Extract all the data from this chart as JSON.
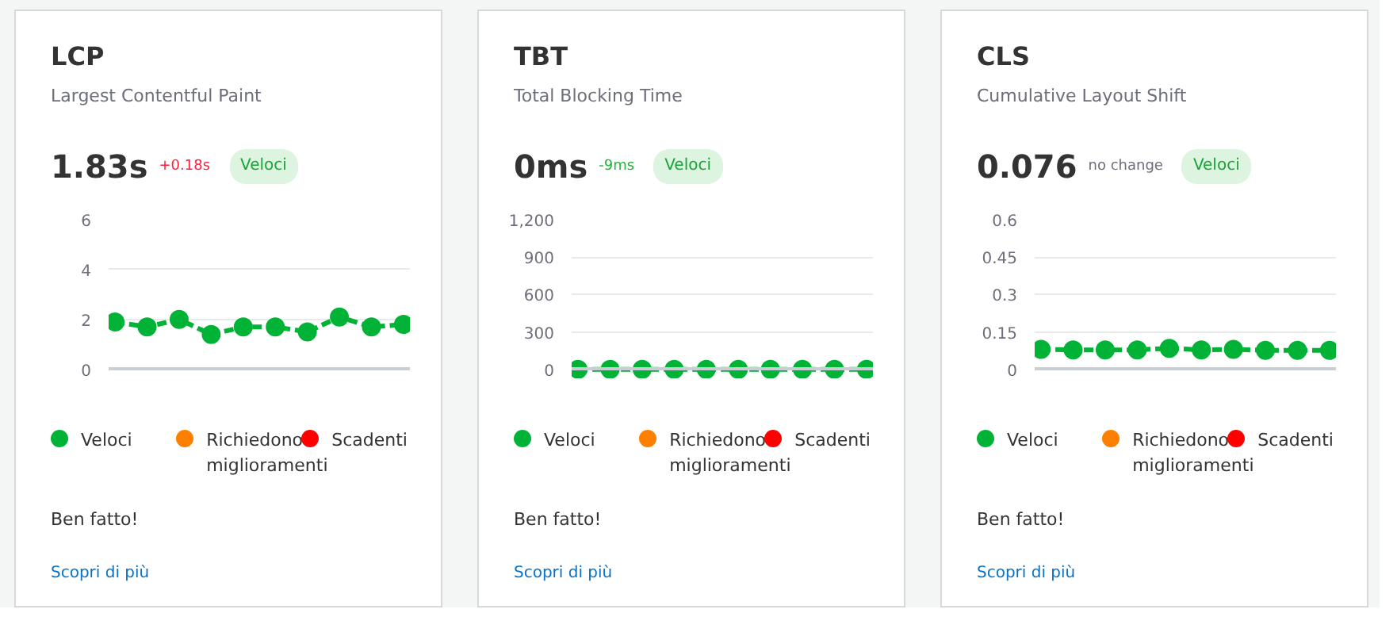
{
  "chart_data": [
    {
      "type": "line",
      "title": "LCP",
      "subtitle": "Largest Contentful Paint",
      "categories": [
        null,
        null,
        null,
        null,
        null,
        null,
        null,
        null,
        null,
        null
      ],
      "series": [
        {
          "name": "Veloci",
          "color": "#00b336",
          "values": [
            1.9,
            1.7,
            2.0,
            1.4,
            1.7,
            1.7,
            1.5,
            2.1,
            1.7,
            1.8
          ]
        },
        {
          "name": "Richiedono miglioramenti",
          "color": "#ff8000",
          "values": [
            null,
            null,
            null,
            null,
            null,
            null,
            null,
            null,
            null,
            null
          ]
        },
        {
          "name": "Scadenti",
          "color": "#ff0000",
          "values": [
            null,
            null,
            null,
            null,
            null,
            null,
            null,
            null,
            null,
            null
          ]
        }
      ],
      "ylim": [
        0,
        6
      ],
      "yticks": [
        0,
        2,
        4,
        6
      ],
      "grid": "y",
      "legend": "bottom",
      "tick_labels": "y",
      "marker": "circle",
      "line_style": "dashed",
      "annotations": [
        "1.83s",
        "+0.18s",
        "Veloci",
        "Ben fatto!",
        "Scopri di più"
      ]
    },
    {
      "type": "line",
      "title": "TBT",
      "subtitle": "Total Blocking Time",
      "categories": [
        null,
        null,
        null,
        null,
        null,
        null,
        null,
        null,
        null,
        null
      ],
      "series": [
        {
          "name": "Veloci",
          "color": "#00b336",
          "values": [
            0,
            0,
            0,
            0,
            0,
            0,
            0,
            0,
            0,
            0
          ]
        },
        {
          "name": "Richiedono miglioramenti",
          "color": "#ff8000",
          "values": [
            null,
            null,
            null,
            null,
            null,
            null,
            null,
            null,
            null,
            null
          ]
        },
        {
          "name": "Scadenti",
          "color": "#ff0000",
          "values": [
            null,
            null,
            null,
            null,
            null,
            null,
            null,
            null,
            null,
            null
          ]
        }
      ],
      "ylim": [
        0,
        1200
      ],
      "yticks": [
        0,
        300,
        600,
        900,
        {
          "value": 1200,
          "label": "1,200"
        }
      ],
      "grid": "y",
      "legend": "bottom",
      "tick_labels": "y",
      "marker": "circle",
      "line_style": "dashed",
      "annotations": [
        "0ms",
        "-9ms",
        "Veloci",
        "Ben fatto!",
        "Scopri di più"
      ]
    },
    {
      "type": "line",
      "title": "CLS",
      "subtitle": "Cumulative Layout Shift",
      "categories": [
        null,
        null,
        null,
        null,
        null,
        null,
        null,
        null,
        null,
        null
      ],
      "series": [
        {
          "name": "Veloci",
          "color": "#00b336",
          "values": [
            0.08,
            0.078,
            0.078,
            0.078,
            0.084,
            0.078,
            0.08,
            0.076,
            0.076,
            0.076
          ]
        },
        {
          "name": "Richiedono miglioramenti",
          "color": "#ff8000",
          "values": [
            null,
            null,
            null,
            null,
            null,
            null,
            null,
            null,
            null,
            null
          ]
        },
        {
          "name": "Scadenti",
          "color": "#ff0000",
          "values": [
            null,
            null,
            null,
            null,
            null,
            null,
            null,
            null,
            null,
            null
          ]
        }
      ],
      "ylim": [
        0,
        0.6
      ],
      "yticks": [
        0,
        0.15,
        0.3,
        0.45,
        0.6
      ],
      "grid": "y",
      "legend": "bottom",
      "tick_labels": "y",
      "marker": "circle",
      "line_style": "dashed",
      "annotations": [
        "0.076",
        "no change",
        "Veloci",
        "Ben fatto!",
        "Scopri di più"
      ]
    }
  ]
}
